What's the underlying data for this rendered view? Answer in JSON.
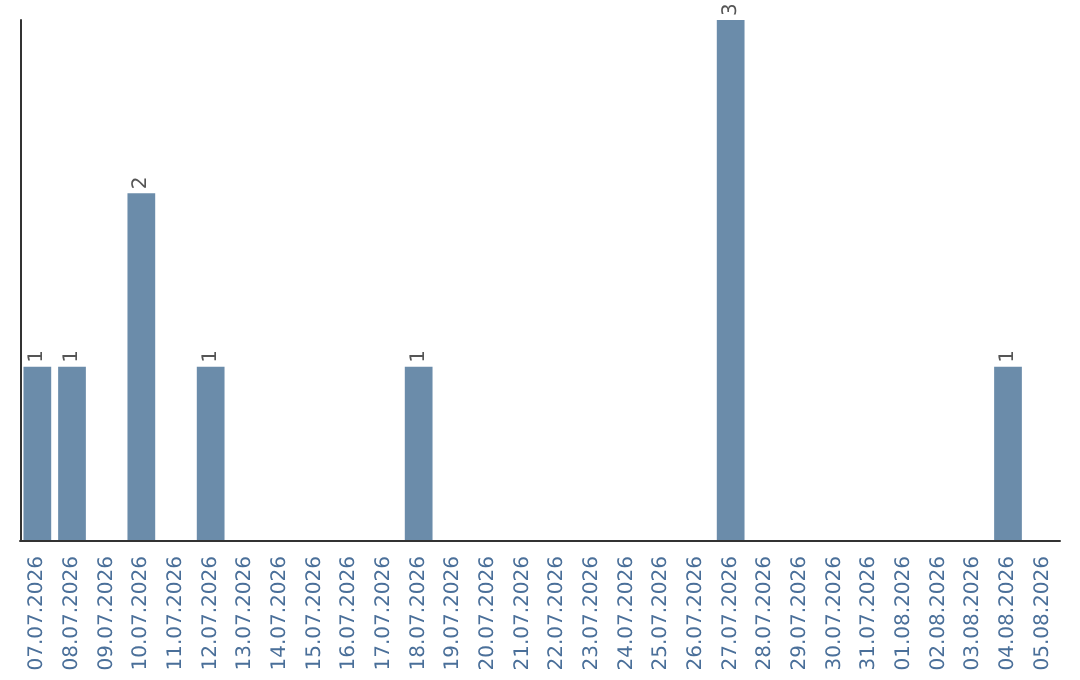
{
  "chart_data": {
    "type": "bar",
    "categories": [
      "07.07.2026",
      "08.07.2026",
      "09.07.2026",
      "10.07.2026",
      "11.07.2026",
      "12.07.2026",
      "13.07.2026",
      "14.07.2026",
      "15.07.2026",
      "16.07.2026",
      "17.07.2026",
      "18.07.2026",
      "19.07.2026",
      "20.07.2026",
      "21.07.2026",
      "22.07.2026",
      "23.07.2026",
      "24.07.2026",
      "25.07.2026",
      "26.07.2026",
      "27.07.2026",
      "28.07.2026",
      "29.07.2026",
      "30.07.2026",
      "31.07.2026",
      "01.08.2026",
      "02.08.2026",
      "03.08.2026",
      "04.08.2026",
      "05.08.2026"
    ],
    "values": [
      1,
      1,
      0,
      2,
      0,
      1,
      0,
      0,
      0,
      0,
      0,
      1,
      0,
      0,
      0,
      0,
      0,
      0,
      0,
      0,
      3,
      0,
      0,
      0,
      0,
      0,
      0,
      0,
      1,
      0
    ],
    "value_labels": [
      "1",
      "1",
      null,
      "2",
      null,
      "1",
      null,
      null,
      null,
      null,
      null,
      "1",
      null,
      null,
      null,
      null,
      null,
      null,
      null,
      null,
      "3",
      null,
      null,
      null,
      null,
      null,
      null,
      null,
      "1",
      null
    ],
    "color": "#6b8caa",
    "grid": false,
    "tick_labels": "x"
  }
}
